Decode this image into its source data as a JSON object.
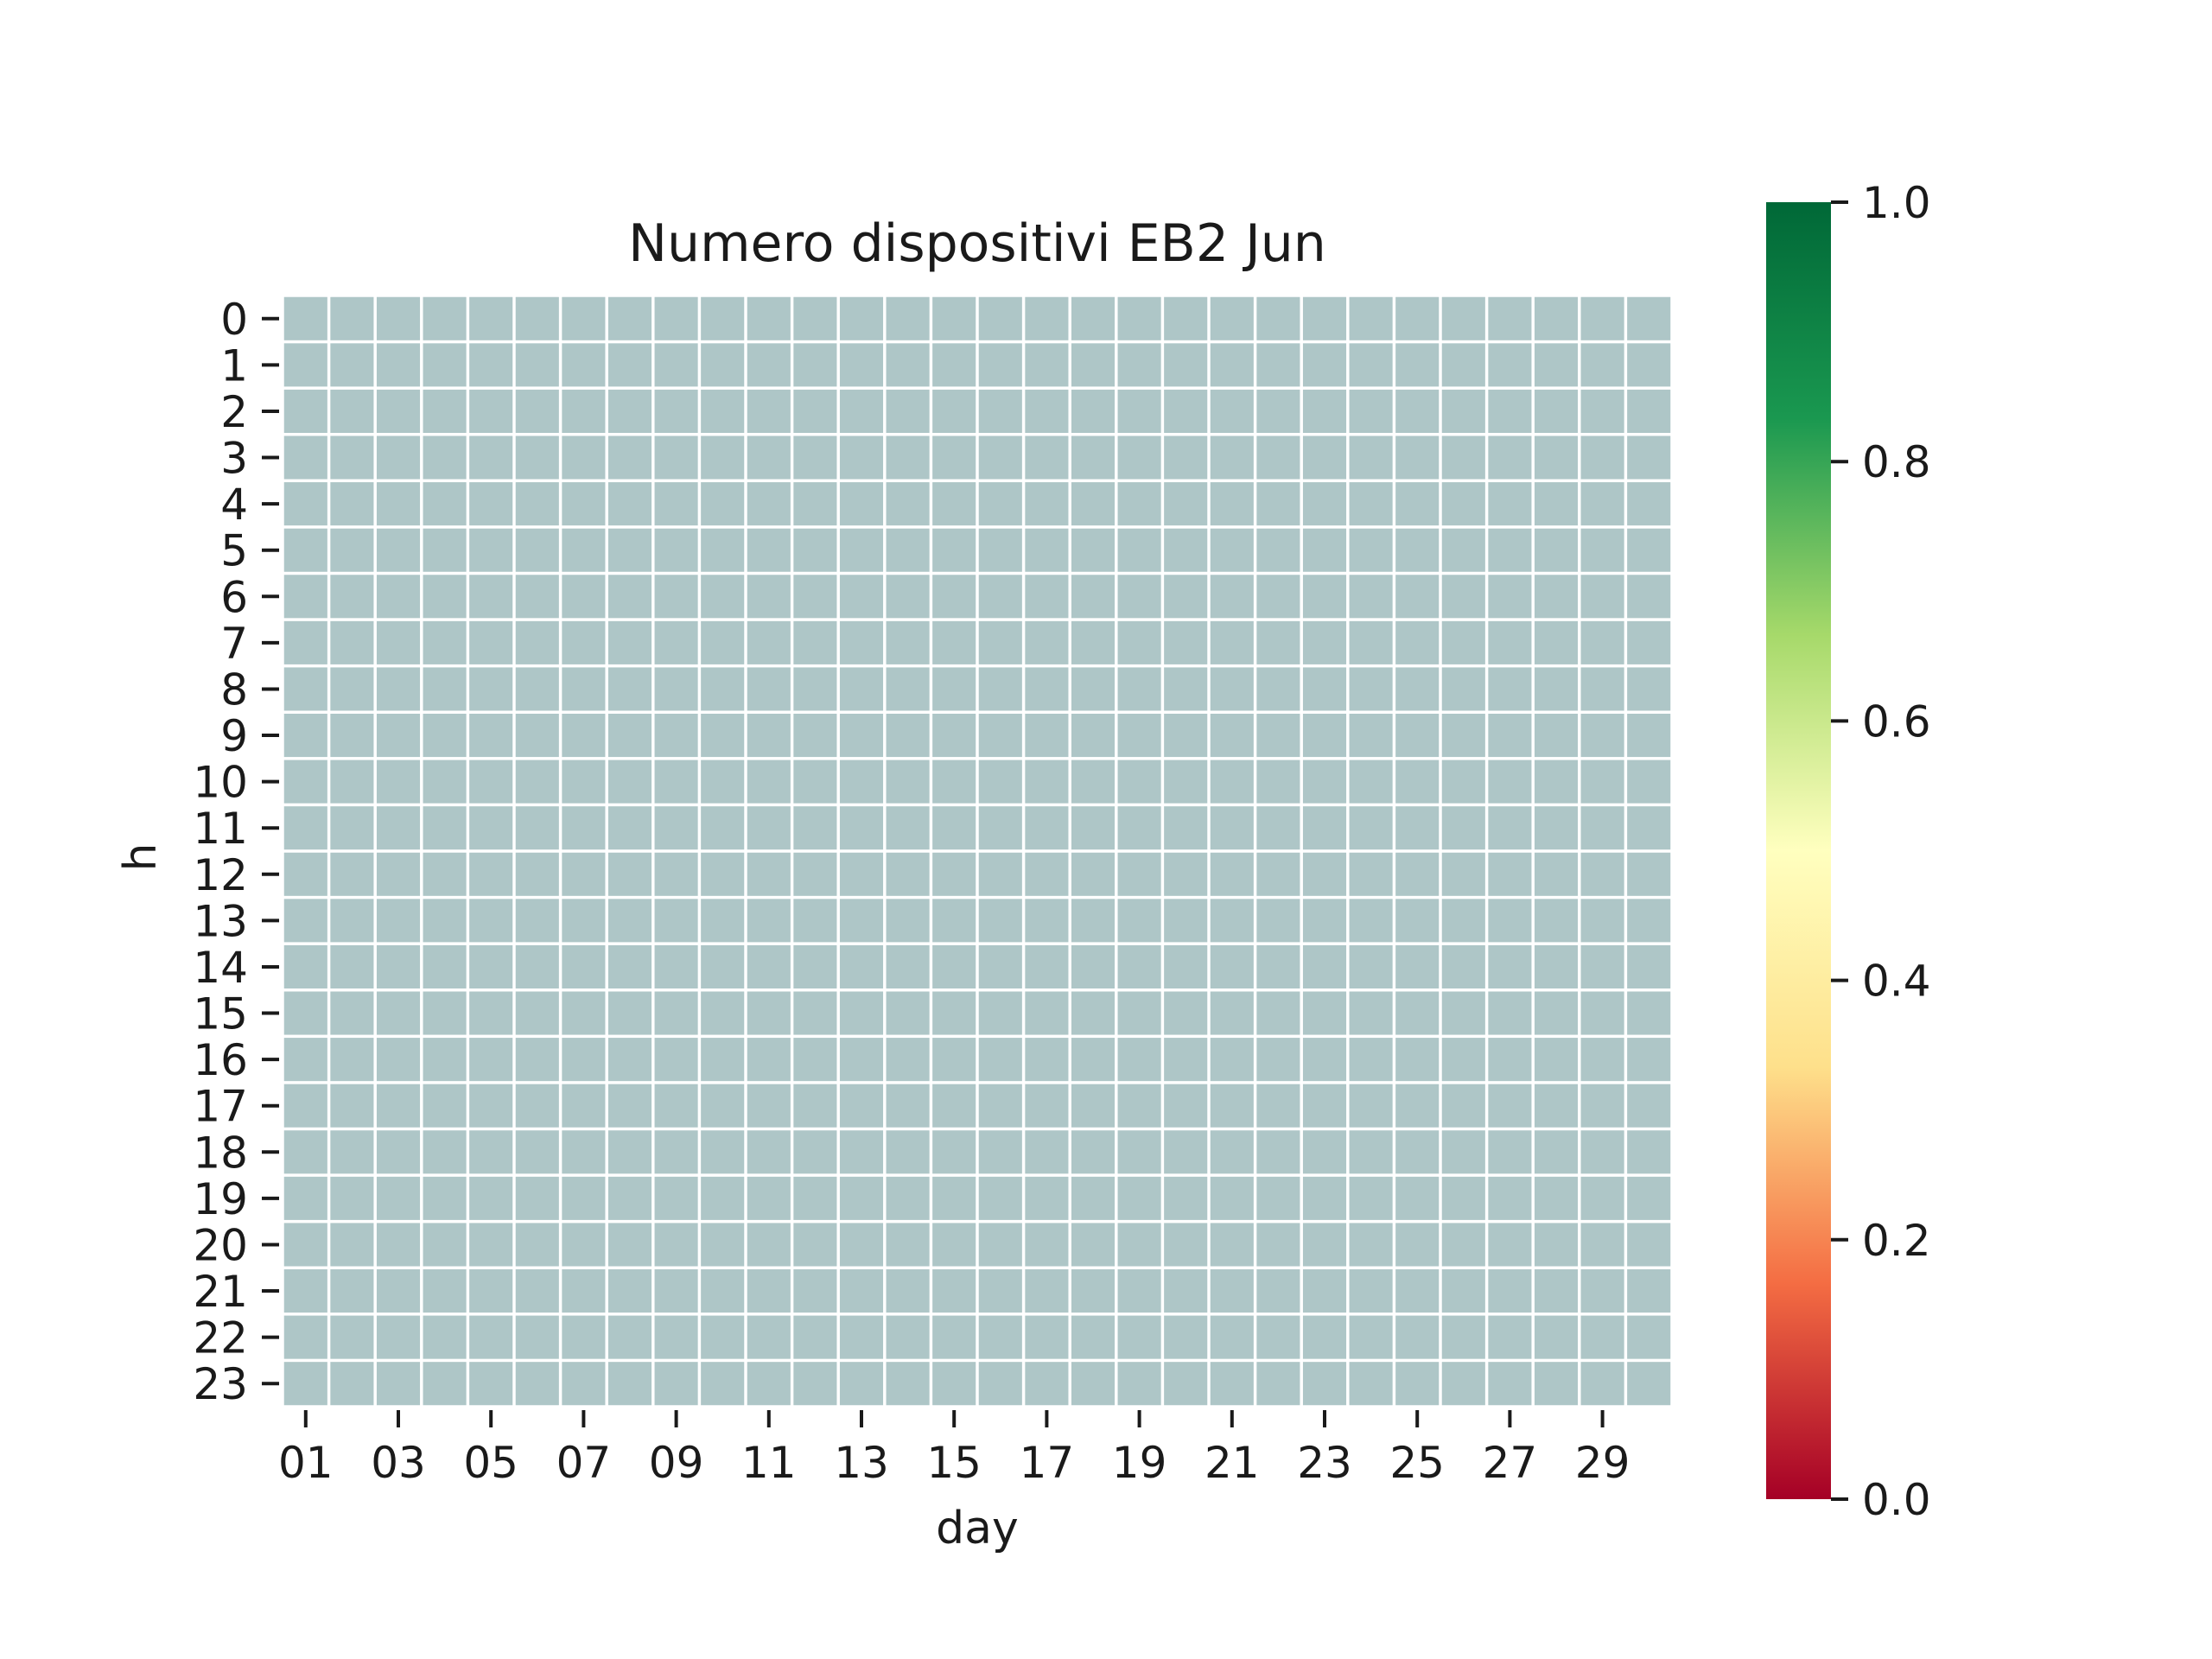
{
  "chart_data": {
    "type": "heatmap",
    "title": "Numero dispositivi EB2 Jun",
    "xlabel": "day",
    "ylabel": "h",
    "x": [
      "01",
      "02",
      "03",
      "04",
      "05",
      "06",
      "07",
      "08",
      "09",
      "10",
      "11",
      "12",
      "13",
      "14",
      "15",
      "16",
      "17",
      "18",
      "19",
      "20",
      "21",
      "22",
      "23",
      "24",
      "25",
      "26",
      "27",
      "28",
      "29",
      "30"
    ],
    "x_tick_labels": [
      "01",
      "03",
      "05",
      "07",
      "09",
      "11",
      "13",
      "15",
      "17",
      "19",
      "21",
      "23",
      "25",
      "27",
      "29"
    ],
    "y": [
      "0",
      "1",
      "2",
      "3",
      "4",
      "5",
      "6",
      "7",
      "8",
      "9",
      "10",
      "11",
      "12",
      "13",
      "14",
      "15",
      "16",
      "17",
      "18",
      "19",
      "20",
      "21",
      "22",
      "23"
    ],
    "values": "all cells empty (no data)",
    "cell_color": "#aec6c7",
    "colorbar": {
      "colormap": "RdYlGn",
      "range": [
        0.0,
        1.0
      ],
      "tick_labels": [
        "0.0",
        "0.2",
        "0.4",
        "0.6",
        "0.8",
        "1.0"
      ],
      "colors": [
        "#a50026",
        "#f46d43",
        "#fee08b",
        "#ffffbf",
        "#a6d96a",
        "#1a9850",
        "#006837"
      ]
    }
  }
}
